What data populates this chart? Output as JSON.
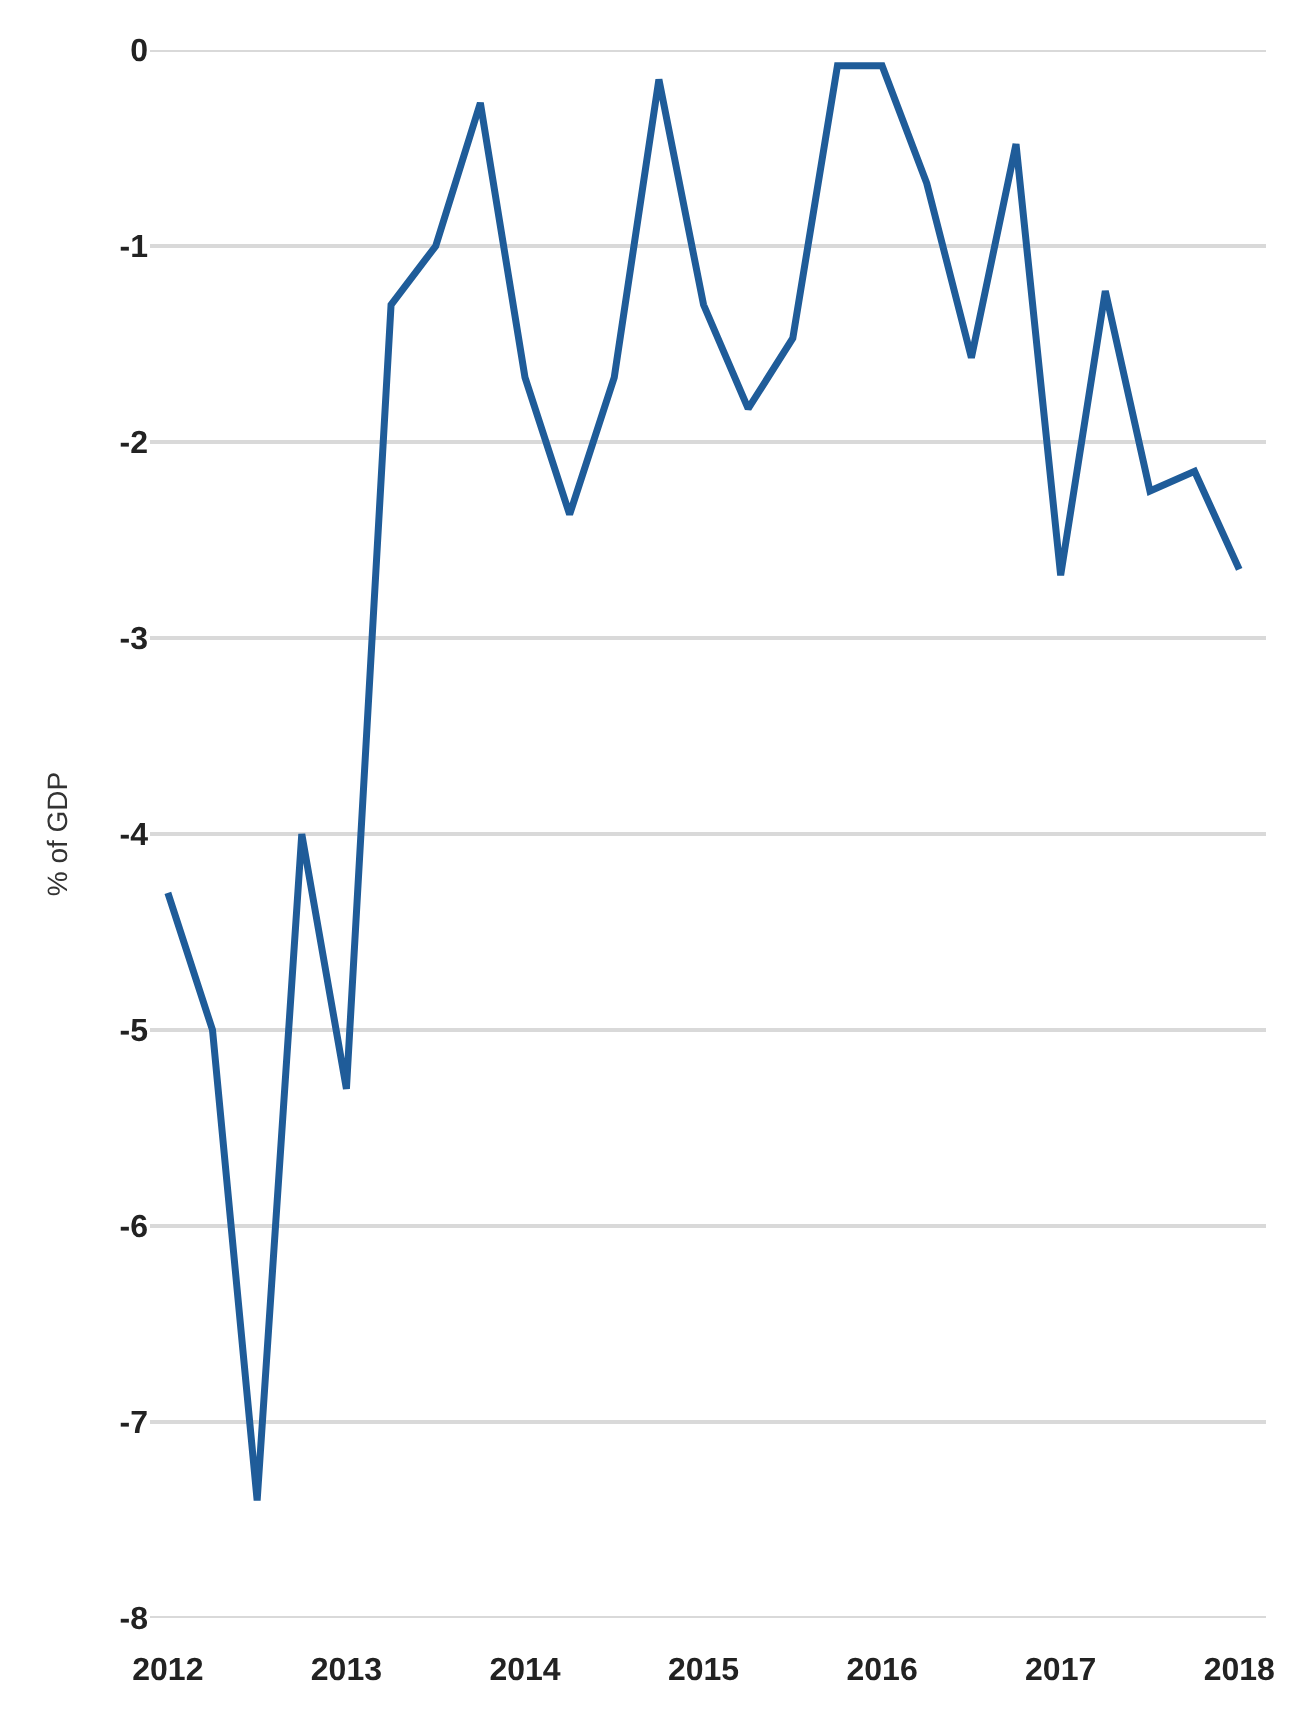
{
  "chart_data": {
    "type": "line",
    "ylabel": "% of GDP",
    "x": [
      2012,
      2012.25,
      2012.5,
      2012.75,
      2013,
      2013.25,
      2013.5,
      2013.75,
      2014,
      2014.25,
      2014.5,
      2014.75,
      2015,
      2015.25,
      2015.5,
      2015.75,
      2016,
      2016.25,
      2016.5,
      2016.75,
      2017,
      2017.25,
      2017.5,
      2017.75,
      2018
    ],
    "series": [
      {
        "color": "#1f5c99",
        "values": [
          -4.3,
          -5.0,
          -7.4,
          -4.0,
          -5.3,
          -1.3,
          -1.0,
          -0.27,
          -1.67,
          -2.37,
          -1.67,
          -0.15,
          -1.3,
          -1.83,
          -1.47,
          -0.08,
          -0.08,
          -0.68,
          -1.57,
          -0.48,
          -2.68,
          -1.23,
          -2.25,
          -2.15,
          -2.65
        ]
      }
    ],
    "xlim": [
      2011.9,
      2018.15
    ],
    "xticks": [
      2012,
      2013,
      2014,
      2015,
      2016,
      2017,
      2018
    ],
    "ylim": [
      -8,
      0
    ],
    "yticks": [
      0,
      -1,
      -2,
      -3,
      -4,
      -5,
      -6,
      -7,
      -8
    ],
    "grid": "y",
    "marker": "none",
    "line_style": "solid"
  }
}
